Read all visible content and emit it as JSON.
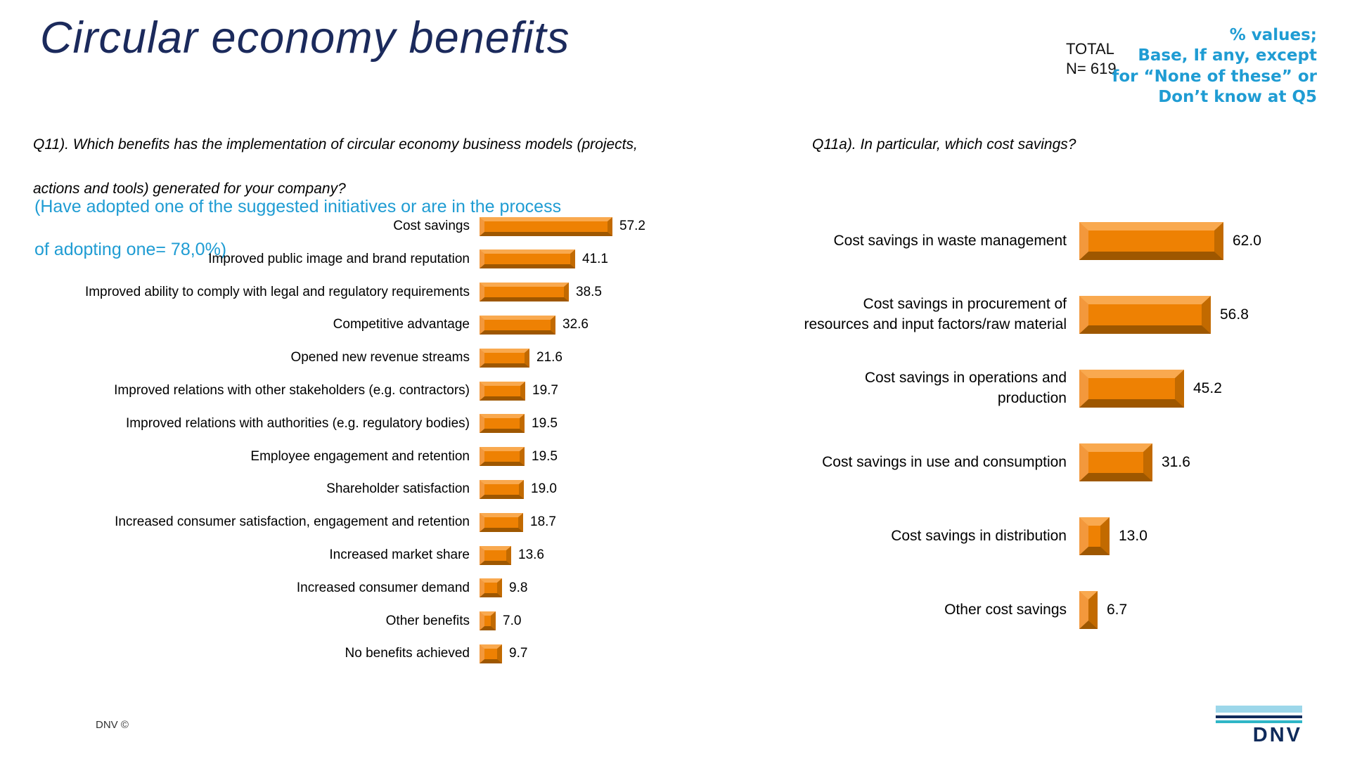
{
  "slide": {
    "title": "Circular economy benefits",
    "total_label": "TOTAL",
    "total_n": "N= 619",
    "note_right_lines": [
      "% values;",
      "Base, If any, except",
      "for “None of these” or",
      "Don’t know at Q5"
    ],
    "footer_left": "DNV ©",
    "logo_text": "DNV",
    "accent_cyan": "#1f9cd3",
    "title_navy": "#1b2a5c",
    "bar_orange": "#ee8103"
  },
  "left_section": {
    "question_lines": [
      "Q11). Which benefits has the implementation of circular economy business models (projects,",
      "actions and tools) generated for your company?"
    ],
    "cyan_note_lines": [
      "(Have adopted one of the suggested initiatives or are in the process",
      "of adopting one= 78,0%)"
    ]
  },
  "right_section": {
    "question_lines": [
      "Q11a). In particular, which cost savings?"
    ]
  },
  "chart_data": [
    {
      "type": "bar",
      "orientation": "horizontal",
      "title": "Q11). Which benefits has the implementation of circular economy business models (projects, actions and tools) generated for your company?",
      "unit": "%",
      "data_labels": true,
      "axis": "none",
      "xlim": [
        0,
        70
      ],
      "bar_color": "#ee8103",
      "categories": [
        "Cost savings",
        "Improved public image and brand reputation",
        "Improved ability to comply with legal and regulatory requirements",
        "Competitive advantage",
        "Opened new revenue streams",
        "Improved relations with other stakeholders (e.g. contractors)",
        "Improved relations with authorities (e.g. regulatory bodies)",
        "Employee engagement and retention",
        "Shareholder satisfaction",
        "Increased consumer satisfaction, engagement and retention",
        "Increased market share",
        "Increased consumer demand",
        "Other benefits",
        "No benefits achieved"
      ],
      "categories_wrapped": [
        [
          "Cost savings"
        ],
        [
          "Improved public image and brand reputation"
        ],
        [
          "Improved ability to comply with legal and regulatory requirements"
        ],
        [
          "Competitive advantage"
        ],
        [
          "Opened new revenue streams"
        ],
        [
          "Improved relations with other stakeholders (e.g. contractors)"
        ],
        [
          "Improved relations with authorities (e.g. regulatory bodies)"
        ],
        [
          "Employee engagement and retention"
        ],
        [
          "Shareholder satisfaction"
        ],
        [
          "Increased consumer satisfaction, engagement and retention"
        ],
        [
          "Increased market share"
        ],
        [
          "Increased consumer demand"
        ],
        [
          "Other benefits"
        ],
        [
          "No benefits achieved"
        ]
      ],
      "values": [
        57.2,
        41.1,
        38.5,
        32.6,
        21.6,
        19.7,
        19.5,
        19.5,
        19.0,
        18.7,
        13.6,
        9.8,
        7.0,
        9.7
      ]
    },
    {
      "type": "bar",
      "orientation": "horizontal",
      "title": "Q11a). In particular, which cost savings?",
      "unit": "%",
      "data_labels": true,
      "axis": "none",
      "xlim": [
        0,
        70
      ],
      "bar_color": "#ee8103",
      "categories": [
        "Cost savings in waste management",
        "Cost savings in procurement of resources and input factors/raw material",
        "Cost savings in operations and production",
        "Cost savings in use and consumption",
        "Cost savings in distribution",
        "Other cost savings"
      ],
      "categories_wrapped": [
        [
          "Cost savings in waste management"
        ],
        [
          "Cost savings in procurement of",
          "resources and input factors/raw material"
        ],
        [
          "Cost savings in operations and",
          "production"
        ],
        [
          "Cost savings in use and consumption"
        ],
        [
          "Cost savings in distribution"
        ],
        [
          "Other cost savings"
        ]
      ],
      "values": [
        62.0,
        56.8,
        45.2,
        31.6,
        13.0,
        6.7
      ]
    }
  ]
}
